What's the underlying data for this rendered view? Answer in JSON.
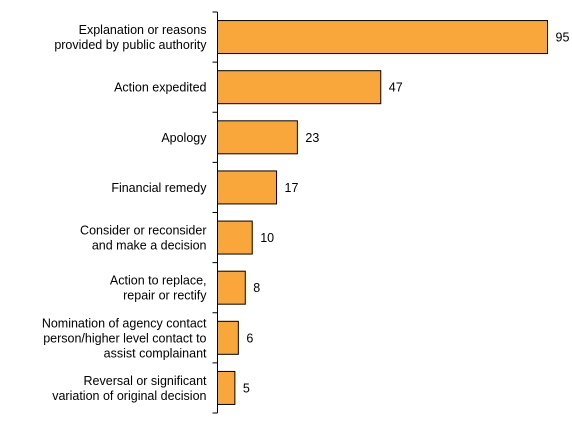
{
  "chart_data": {
    "type": "bar",
    "orientation": "horizontal",
    "categories": [
      [
        "Explanation or reasons",
        "provided by public authority"
      ],
      [
        "Action expedited"
      ],
      [
        "Apology"
      ],
      [
        "Financial remedy"
      ],
      [
        "Consider or reconsider",
        "and make a decision"
      ],
      [
        "Action to replace,",
        "repair or rectify"
      ],
      [
        "Nomination of agency contact",
        "person/higher level contact to",
        "assist complainant"
      ],
      [
        "Reversal or significant",
        "variation of original decision"
      ]
    ],
    "values": [
      95,
      47,
      23,
      17,
      10,
      8,
      6,
      5
    ],
    "data_labels": [
      "95",
      "47",
      "23",
      "17",
      "10",
      "8",
      "6",
      "5"
    ],
    "xlim": [
      0,
      100
    ],
    "grid": false,
    "legend": "none",
    "bar_color": "#F9A63A",
    "bar_stroke": "#000000"
  }
}
